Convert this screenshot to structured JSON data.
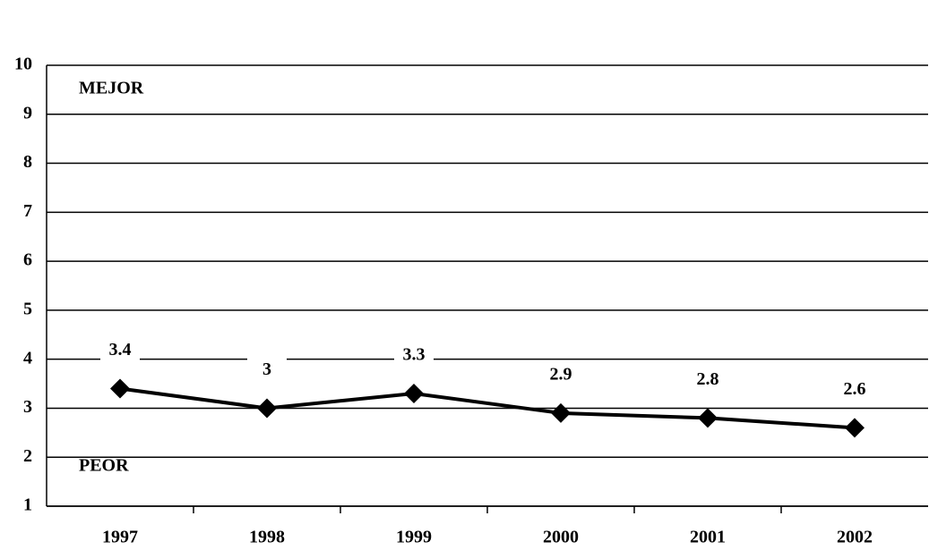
{
  "chart_data": {
    "type": "line",
    "categories": [
      "1997",
      "1998",
      "1999",
      "2000",
      "2001",
      "2002"
    ],
    "series": [
      {
        "name": null,
        "color": "#000000",
        "values": [
          3.4,
          3,
          3.3,
          2.9,
          2.8,
          2.6
        ]
      }
    ],
    "ylim": [
      1,
      10
    ],
    "yticks": [
      1,
      2,
      3,
      4,
      5,
      6,
      7,
      8,
      9,
      10
    ],
    "grid": true,
    "annotations": [
      "MEJOR",
      "PEOR"
    ]
  }
}
